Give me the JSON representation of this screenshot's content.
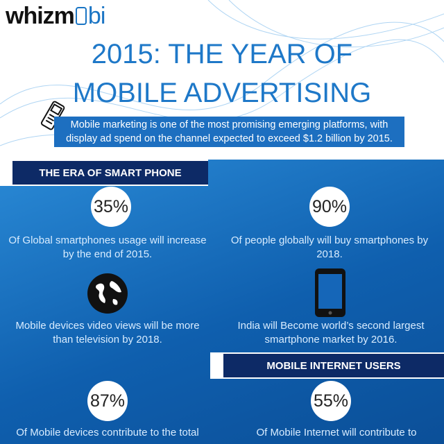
{
  "logo": {
    "part1": "whizm",
    "part2": "bi"
  },
  "title": [
    "2015: THE YEAR OF",
    "MOBILE ADVERTISING"
  ],
  "intro": "Mobile marketing is one of the most promising emerging platforms, with display ad spend on the channel expected to exceed $1.2 billion by 2015.",
  "sections": [
    {
      "heading": "THE ERA OF SMART PHONE",
      "items": [
        {
          "stat": "35%",
          "text": "Of Global smartphones usage will increase by the end of 2015."
        },
        {
          "stat": "90%",
          "text": "Of people globally will buy smartphones by 2018."
        },
        {
          "text": "Mobile devices video views will be more than television by 2018."
        },
        {
          "text": "India will Become world’s second largest smartphone market by 2016."
        }
      ]
    },
    {
      "heading": "MOBILE INTERNET USERS",
      "items": [
        {
          "stat": "87%",
          "text": "Of Mobile devices contribute to the total"
        },
        {
          "stat": "55%",
          "text": "Of Mobile Internet will contribute to"
        }
      ]
    }
  ]
}
